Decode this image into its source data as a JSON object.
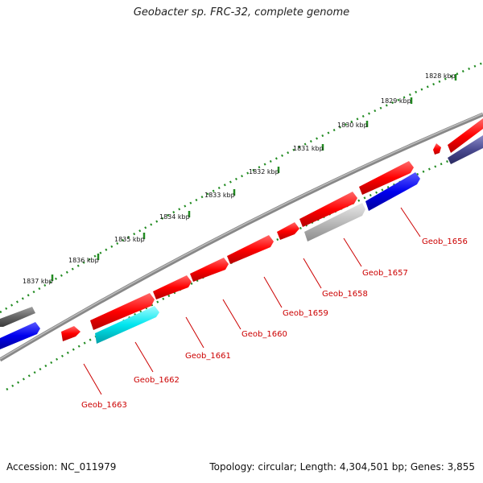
{
  "title": "Geobacter sp. FRC-32, complete genome",
  "accession": "Accession: NC_011979",
  "summary": "Topology: circular; Length: 4,304,501 bp; Genes: 3,855",
  "kbp_labels": [
    "1828 kbp",
    "1829 kbp",
    "1830 kbp",
    "1831 kbp",
    "1832 kbp",
    "1833 kbp",
    "1834 kbp",
    "1835 kbp",
    "1836 kbp",
    "1837 kbp"
  ],
  "gene_labels": [
    "Geob_1656",
    "Geob_1657",
    "Geob_1658",
    "Geob_1659",
    "Geob_1660",
    "Geob_1661",
    "Geob_1662",
    "Geob_1663"
  ],
  "colors": {
    "cds": "#ff0000",
    "blue": "#0000ee",
    "cyan": "#00e5ee",
    "gray": "#666666",
    "light_gray": "#bbbbbb",
    "navy": "#4a4a90",
    "ticks": "#228B22",
    "backbone": "#888888",
    "label_red": "#cc0000"
  }
}
